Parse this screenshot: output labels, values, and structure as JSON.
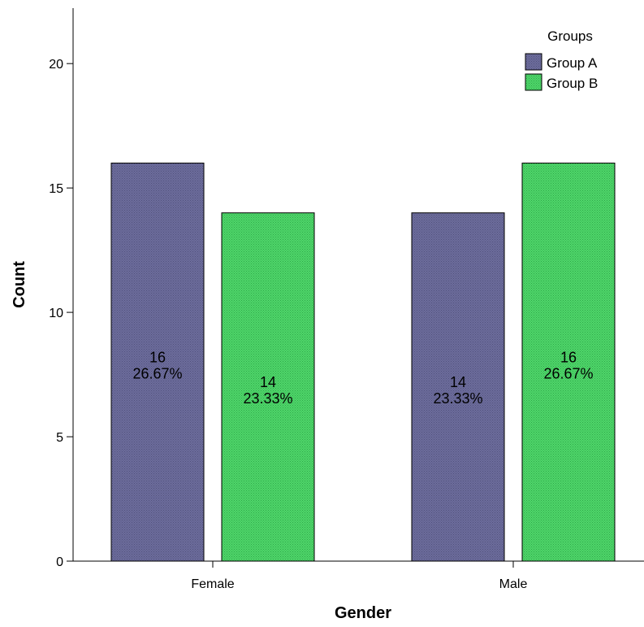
{
  "colors": {
    "group_a": "#6c6c9c",
    "group_b": "#4fd66a",
    "axis": "#000000",
    "background": "#ffffff"
  },
  "chart_data": {
    "type": "bar",
    "title": "",
    "xlabel": "Gender",
    "ylabel": "Count",
    "ylim": [
      0,
      22
    ],
    "yticks": [
      0,
      5,
      10,
      15,
      20
    ],
    "categories": [
      "Female",
      "Male"
    ],
    "legend": {
      "title": "Groups",
      "placement": "top-right"
    },
    "series": [
      {
        "name": "Group A",
        "values": [
          16,
          14
        ],
        "labels": [
          "26.67%",
          "23.33%"
        ]
      },
      {
        "name": "Group B",
        "values": [
          14,
          16
        ],
        "labels": [
          "23.33%",
          "26.67%"
        ]
      }
    ],
    "grid": false
  }
}
